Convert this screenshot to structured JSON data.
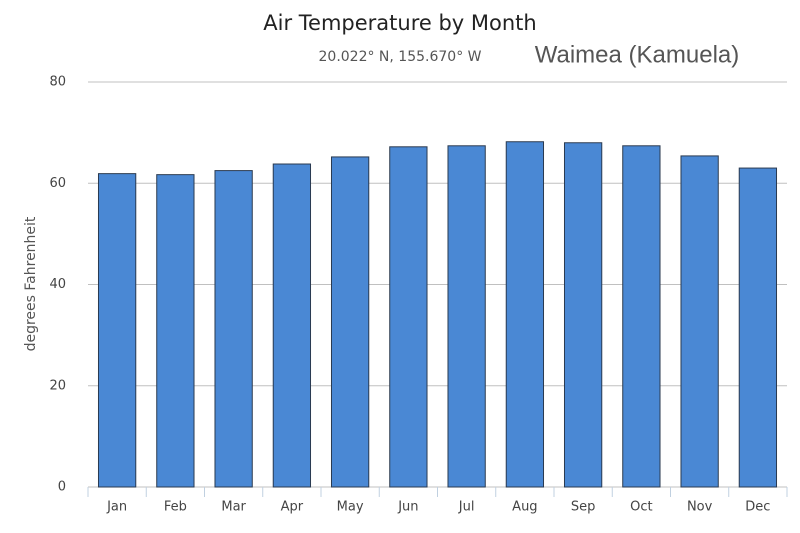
{
  "chart_data": {
    "type": "bar",
    "title": "Air Temperature by Month",
    "subtitle": "20.022° N, 155.670° W",
    "annotation": "Waimea (Kamuela)",
    "y_label": "degrees Fahrenheit",
    "categories": [
      "Jan",
      "Feb",
      "Mar",
      "Apr",
      "May",
      "Jun",
      "Jul",
      "Aug",
      "Sep",
      "Oct",
      "Nov",
      "Dec"
    ],
    "values": [
      61.9,
      61.7,
      62.5,
      63.8,
      65.2,
      67.2,
      67.4,
      68.2,
      68.0,
      67.4,
      65.4,
      63.0
    ],
    "color": "#4a88d4",
    "ylim": [
      0,
      80
    ],
    "yticks": [
      0,
      20,
      40,
      60,
      80
    ],
    "grid": true
  }
}
